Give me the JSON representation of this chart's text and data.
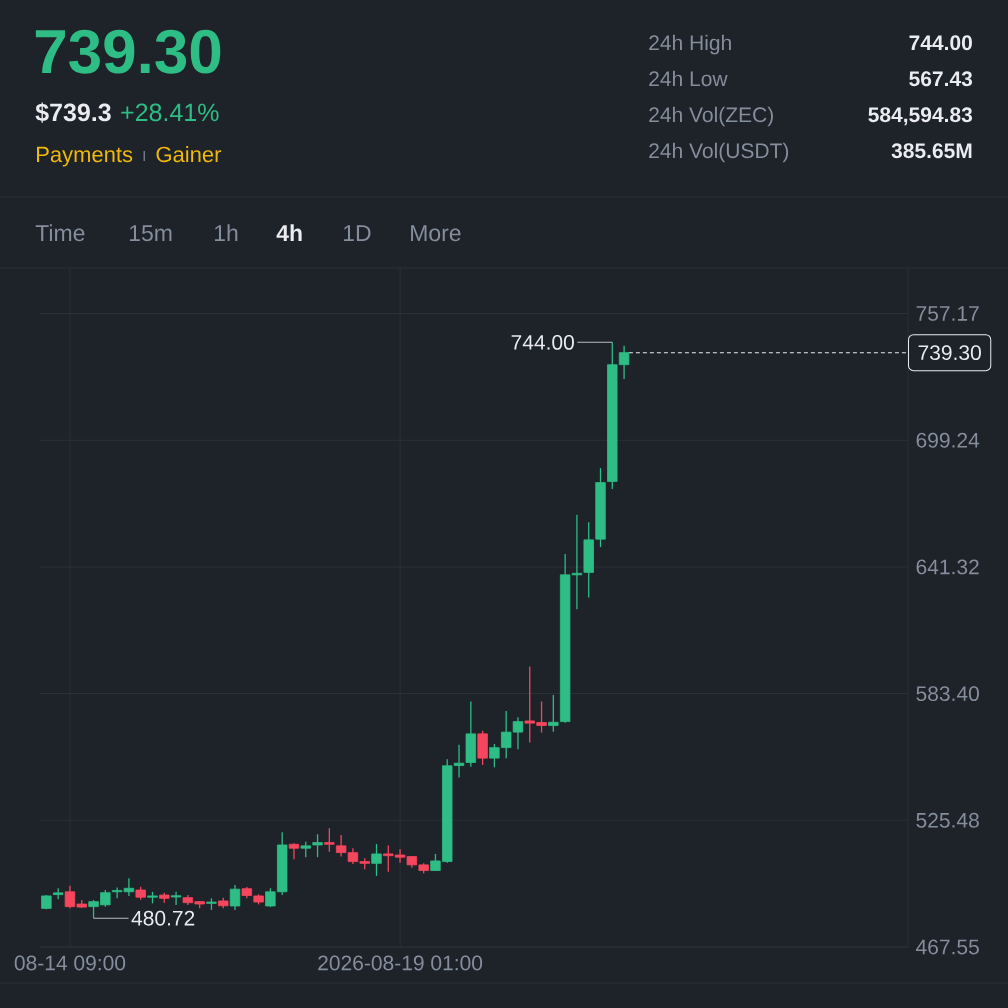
{
  "chart_data": {
    "type": "candlestick",
    "title": "739.30",
    "x": [
      "2026-08-14T01:00",
      "2026-08-14T05:00",
      "2026-08-14T09:00",
      "2026-08-14T13:00",
      "2026-08-14T17:00",
      "2026-08-14T21:00",
      "2026-08-15T01:00",
      "2026-08-15T05:00",
      "2026-08-15T09:00",
      "2026-08-15T13:00",
      "2026-08-15T17:00",
      "2026-08-15T21:00",
      "2026-08-16T01:00",
      "2026-08-16T05:00",
      "2026-08-16T09:00",
      "2026-08-16T13:00",
      "2026-08-16T17:00",
      "2026-08-16T21:00",
      "2026-08-17T01:00",
      "2026-08-17T05:00",
      "2026-08-17T09:00",
      "2026-08-17T13:00",
      "2026-08-17T17:00",
      "2026-08-17T21:00",
      "2026-08-18T01:00",
      "2026-08-18T05:00",
      "2026-08-18T09:00",
      "2026-08-18T13:00",
      "2026-08-18T17:00",
      "2026-08-18T21:00",
      "2026-08-19T01:00",
      "2026-08-19T05:00",
      "2026-08-19T09:00",
      "2026-08-19T13:00",
      "2026-08-19T17:00",
      "2026-08-19T21:00",
      "2026-08-20T01:00",
      "2026-08-20T05:00",
      "2026-08-20T09:00",
      "2026-08-20T13:00",
      "2026-08-20T17:00",
      "2026-08-20T21:00",
      "2026-08-21T01:00",
      "2026-08-21T05:00",
      "2026-08-21T09:00",
      "2026-08-21T13:00",
      "2026-08-21T17:00",
      "2026-08-21T21:00",
      "2026-08-22T01:00",
      "2026-08-22T05:00"
    ],
    "ohlc": [
      [
        485.2,
        491.3,
        484.8,
        490.9
      ],
      [
        491.5,
        494.4,
        489.4,
        492.3
      ],
      [
        492.8,
        495.5,
        485.3,
        486.0
      ],
      [
        487.2,
        489.0,
        485.4,
        485.8
      ],
      [
        486.0,
        489.0,
        480.72,
        488.3
      ],
      [
        486.8,
        493.6,
        486.0,
        492.4
      ],
      [
        492.8,
        494.7,
        489.8,
        493.4
      ],
      [
        492.8,
        499.0,
        490.9,
        494.4
      ],
      [
        493.6,
        495.1,
        489.1,
        490.3
      ],
      [
        490.3,
        492.8,
        487.5,
        490.9
      ],
      [
        491.3,
        492.4,
        487.8,
        489.8
      ],
      [
        490.4,
        492.8,
        486.8,
        491.0
      ],
      [
        490.1,
        491.3,
        486.8,
        487.8
      ],
      [
        488.3,
        488.6,
        485.3,
        487.2
      ],
      [
        487.5,
        489.8,
        484.5,
        488.1
      ],
      [
        488.6,
        490.1,
        485.3,
        486.4
      ],
      [
        486.3,
        495.9,
        484.5,
        494.0
      ],
      [
        494.2,
        495.0,
        489.8,
        491.1
      ],
      [
        490.9,
        491.6,
        487.0,
        488.1
      ],
      [
        486.3,
        494.4,
        485.8,
        492.8
      ],
      [
        492.8,
        520.0,
        491.3,
        514.2
      ],
      [
        514.5,
        515.0,
        507.7,
        512.7
      ],
      [
        512.7,
        515.7,
        508.6,
        513.8
      ],
      [
        514.2,
        519.1,
        508.6,
        515.3
      ],
      [
        515.3,
        521.8,
        511.1,
        514.5
      ],
      [
        513.8,
        518.8,
        508.9,
        510.7
      ],
      [
        510.7,
        512.7,
        505.5,
        506.6
      ],
      [
        506.6,
        508.1,
        503.1,
        505.8
      ],
      [
        505.8,
        514.7,
        500.0,
        510.1
      ],
      [
        510.1,
        513.9,
        502.0,
        509.3
      ],
      [
        509.6,
        512.2,
        506.1,
        508.6
      ],
      [
        508.9,
        509.0,
        503.8,
        505.1
      ],
      [
        505.1,
        505.8,
        501.3,
        502.5
      ],
      [
        502.5,
        510.1,
        502.3,
        506.9
      ],
      [
        506.6,
        553.4,
        506.1,
        550.4
      ],
      [
        550.5,
        560.0,
        545.0,
        551.6
      ],
      [
        551.9,
        579.8,
        550.0,
        565.0
      ],
      [
        565.0,
        566.4,
        550.8,
        553.9
      ],
      [
        553.9,
        560.4,
        549.7,
        558.7
      ],
      [
        558.7,
        575.5,
        553.9,
        565.8
      ],
      [
        565.8,
        572.6,
        558.0,
        570.6
      ],
      [
        570.9,
        595.8,
        561.0,
        569.9
      ],
      [
        570.2,
        579.8,
        565.6,
        568.8
      ],
      [
        568.8,
        582.8,
        566.0,
        570.3
      ],
      [
        570.6,
        647.2,
        570.1,
        637.7
      ],
      [
        637.7,
        665.2,
        622.0,
        638.4
      ],
      [
        638.8,
        661.8,
        627.3,
        653.7
      ],
      [
        654.0,
        686.5,
        650.4,
        679.9
      ],
      [
        680.4,
        744.0,
        677.0,
        733.8
      ],
      [
        733.8,
        742.5,
        727.2,
        739.3
      ]
    ],
    "colors": [
      "#2ebd85",
      "#2ebd85",
      "#f6465d",
      "#f6465d",
      "#2ebd85",
      "#2ebd85",
      "#2ebd85",
      "#2ebd85",
      "#f6465d",
      "#2ebd85",
      "#f6465d",
      "#2ebd85",
      "#f6465d",
      "#f6465d",
      "#2ebd85",
      "#f6465d",
      "#2ebd85",
      "#f6465d",
      "#f6465d",
      "#2ebd85",
      "#2ebd85",
      "#f6465d",
      "#2ebd85",
      "#2ebd85",
      "#f6465d",
      "#f6465d",
      "#f6465d",
      "#f6465d",
      "#2ebd85",
      "#f6465d",
      "#f6465d",
      "#f6465d",
      "#f6465d",
      "#2ebd85",
      "#2ebd85",
      "#2ebd85",
      "#2ebd85",
      "#f6465d",
      "#2ebd85",
      "#2ebd85",
      "#2ebd85",
      "#f6465d",
      "#f6465d",
      "#2ebd85",
      "#2ebd85",
      "#2ebd85",
      "#2ebd85",
      "#2ebd85",
      "#2ebd85",
      "#2ebd85"
    ],
    "xlim": [
      "2026-08-13T22:50",
      "2026-08-26T05:20"
    ],
    "ylim": [
      467.55,
      778
    ],
    "xticks": [
      {
        "value": "2026-08-14T09:00",
        "label": "08-14 09:00"
      },
      {
        "value": "2026-08-19T01:00",
        "label": "2026-08-19 01:00"
      }
    ],
    "yticks": [
      467.55,
      525.48,
      {
        "value": 583.4,
        "label": "583.40"
      },
      641.32,
      699.24,
      757.17
    ],
    "grid": true,
    "ref_lines": [
      {
        "axis": "y",
        "value": 739.3,
        "label": "739.30",
        "line_style": "dashed",
        "color": "#eaecef"
      }
    ],
    "annotations": [
      "$739.3",
      "+28.41%",
      "Payments",
      "Gainer",
      "24h High",
      "744.00",
      "24h Low",
      "567.43",
      "24h Vol(ZEC)",
      "584,594.83",
      "24h Vol(USDT)",
      "385.65M",
      "Time",
      "15m",
      "1h",
      "4h",
      "1D",
      "More",
      {
        "text": "744.00",
        "x": "2026-08-22T01:00",
        "y": 744.0
      },
      {
        "text": "480.72",
        "x": "2026-08-14T17:00",
        "y": 480.72
      }
    ]
  }
}
